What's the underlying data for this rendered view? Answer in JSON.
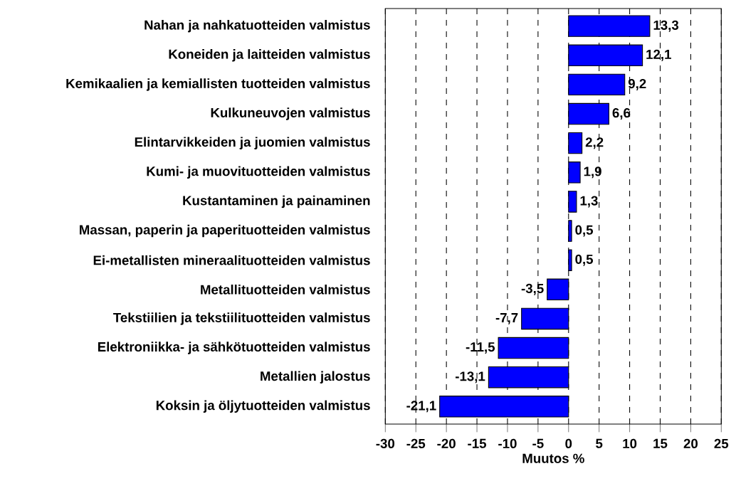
{
  "chart_data": {
    "type": "bar",
    "orientation": "horizontal",
    "categories": [
      "Nahan ja nahkatuotteiden valmistus",
      "Koneiden ja laitteiden valmistus",
      "Kemikaalien ja kemiallisten tuotteiden valmistus",
      "Kulkuneuvojen valmistus",
      "Elintarvikkeiden ja juomien valmistus",
      "Kumi- ja muovituotteiden valmistus",
      "Kustantaminen ja painaminen",
      "Massan, paperin ja paperituotteiden valmistus",
      "Ei-metallisten mineraalituotteiden valmistus",
      "Metallituotteiden valmistus",
      "Tekstiilien ja tekstiilituotteiden valmistus",
      "Elektroniikka- ja sähkötuotteiden valmistus",
      "Metallien jalostus",
      "Koksin ja öljytuotteiden valmistus"
    ],
    "values": [
      13.3,
      12.1,
      9.2,
      6.6,
      2.2,
      1.9,
      1.3,
      0.5,
      0.5,
      -3.5,
      -7.7,
      -11.5,
      -13.1,
      -21.1
    ],
    "value_labels": [
      "13,3",
      "12,1",
      "9,2",
      "6,6",
      "2,2",
      "1,9",
      "1,3",
      "0,5",
      "0,5",
      "-3,5",
      "-7,7",
      "-11,5",
      "-13,1",
      "-21,1"
    ],
    "color": "#0000ff",
    "xlabel": "Muutos %",
    "xlim": [
      -30,
      25
    ],
    "xticks": [
      -30,
      -25,
      -20,
      -15,
      -10,
      -5,
      0,
      5,
      10,
      15,
      20,
      25
    ],
    "grid": "x"
  }
}
